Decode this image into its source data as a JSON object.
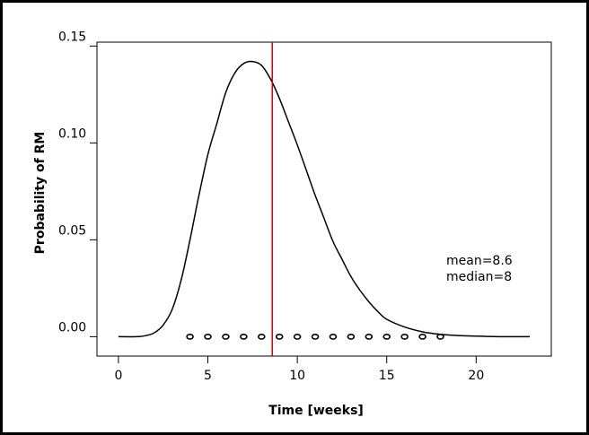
{
  "chart_data": {
    "type": "line",
    "title": "",
    "xlabel": "Time [weeks]",
    "ylabel": "Probability of RM",
    "xlim": [
      -1.2,
      24.2
    ],
    "ylim": [
      -0.01,
      0.152
    ],
    "xticks": [
      0,
      5,
      10,
      15,
      20
    ],
    "xtick_labels": [
      "0",
      "5",
      "10",
      "15",
      "20"
    ],
    "yticks": [
      0.0,
      0.05,
      0.1,
      0.15
    ],
    "ytick_labels": [
      "0.00",
      "0.05",
      "0.10",
      "0.15"
    ],
    "grid": false,
    "series": [
      {
        "style": "curve",
        "color": "#000000",
        "x": [
          0,
          1,
          1.5,
          2,
          2.5,
          3,
          3.5,
          4,
          4.5,
          5,
          5.5,
          6,
          6.5,
          7,
          7.5,
          8,
          8.5,
          9,
          9.5,
          10,
          10.5,
          11,
          11.5,
          12,
          12.5,
          13,
          13.5,
          14,
          14.5,
          15,
          16,
          17,
          18,
          19,
          20,
          21,
          22,
          23
        ],
        "y": [
          0.0,
          0.0,
          0.0005,
          0.002,
          0.006,
          0.014,
          0.029,
          0.05,
          0.073,
          0.094,
          0.11,
          0.126,
          0.136,
          0.141,
          0.142,
          0.14,
          0.133,
          0.123,
          0.111,
          0.099,
          0.086,
          0.073,
          0.061,
          0.049,
          0.04,
          0.031,
          0.024,
          0.018,
          0.013,
          0.009,
          0.005,
          0.0025,
          0.0012,
          0.0006,
          0.0003,
          0.0001,
          0.0,
          0.0
        ]
      },
      {
        "style": "points",
        "marker": "open-circle",
        "color": "#000000",
        "x": [
          4,
          5,
          6,
          7,
          8,
          9,
          10,
          11,
          12,
          13,
          14,
          15,
          16,
          17,
          18
        ],
        "y": [
          0,
          0,
          0,
          0,
          0,
          0,
          0,
          0,
          0,
          0,
          0,
          0,
          0,
          0,
          0
        ]
      }
    ],
    "vline": {
      "x": 8.6,
      "color": "#cc0000"
    },
    "annotations": [
      {
        "text": "mean=8.6"
      },
      {
        "text": "median=8"
      }
    ]
  }
}
